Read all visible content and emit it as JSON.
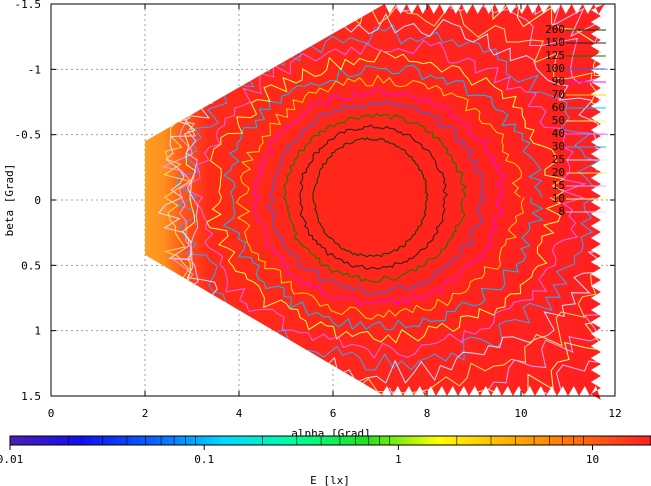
{
  "chart_data": {
    "type": "heatmap",
    "xlabel": "alpha [Grad]",
    "ylabel": "beta [Grad]",
    "xlim": [
      0,
      12
    ],
    "ylim": [
      -1.5,
      1.5
    ],
    "x_ticks": [
      0,
      2,
      4,
      6,
      8,
      10,
      12
    ],
    "y_ticks": [
      -1.5,
      -1,
      -0.5,
      0,
      0.5,
      1,
      1.5
    ],
    "y_tick_labels": [
      "-1.5",
      "-1",
      "-0.5",
      "0",
      "0.5",
      "1",
      "1.5"
    ],
    "y_axis_direction": "top-to-bottom",
    "grid": true,
    "colorbar": {
      "label": "E [lx]",
      "scale": "log",
      "range": [
        0.01,
        20
      ],
      "tick_labels": [
        {
          "value": 0.01,
          "label": "0.01"
        },
        {
          "value": 0.1,
          "label": "0.1"
        },
        {
          "value": 1,
          "label": "1"
        },
        {
          "value": 10,
          "label": "10"
        }
      ],
      "colors": [
        "#4b1fb5",
        "#1010ee",
        "#0a60ff",
        "#00d8ff",
        "#00ff9a",
        "#20e020",
        "#ffff00",
        "#ffb000",
        "#ff6a10",
        "#ff2020"
      ]
    },
    "contour_levels": [
      {
        "label": "200",
        "color": "#004000"
      },
      {
        "label": "150",
        "color": "#202020"
      },
      {
        "label": "125",
        "color": "#008000"
      },
      {
        "label": "100",
        "color": "#3060ff"
      },
      {
        "label": "90",
        "color": "#ff00ff"
      },
      {
        "label": "70",
        "color": "#ffd000"
      },
      {
        "label": "60",
        "color": "#00c0ff"
      },
      {
        "label": "50",
        "color": "#ffff40"
      },
      {
        "label": "40",
        "color": "#ff60ff"
      },
      {
        "label": "30",
        "color": "#40a0ff"
      },
      {
        "label": "25",
        "color": "#e0e0ff"
      },
      {
        "label": "20",
        "color": "#ffe060"
      },
      {
        "label": "15",
        "color": "#ffa0ff"
      },
      {
        "label": "10",
        "color": "#ffff80"
      },
      {
        "label": "8",
        "color": "#ffc0ff"
      }
    ],
    "region": {
      "vertices": [
        [
          2,
          -0.45
        ],
        [
          7.1,
          -1.5
        ],
        [
          11.7,
          -1.5
        ],
        [
          11.7,
          1.5
        ],
        [
          7.1,
          1.5
        ],
        [
          2,
          0.42
        ]
      ]
    }
  }
}
